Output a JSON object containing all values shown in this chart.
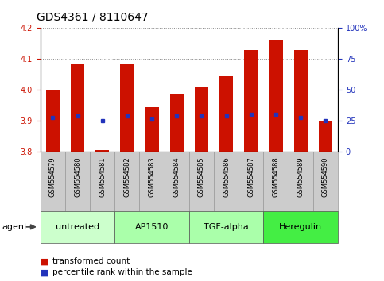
{
  "title": "GDS4361 / 8110647",
  "samples": [
    "GSM554579",
    "GSM554580",
    "GSM554581",
    "GSM554582",
    "GSM554583",
    "GSM554584",
    "GSM554585",
    "GSM554586",
    "GSM554587",
    "GSM554588",
    "GSM554589",
    "GSM554590"
  ],
  "bar_tops": [
    4.0,
    4.085,
    3.805,
    4.085,
    3.945,
    3.985,
    4.01,
    4.045,
    4.13,
    4.16,
    4.13,
    3.9
  ],
  "bar_bottom": 3.8,
  "blue_dots": [
    3.91,
    3.915,
    3.9,
    3.915,
    3.905,
    3.915,
    3.915,
    3.915,
    3.92,
    3.92,
    3.91,
    3.9
  ],
  "bar_color": "#cc1100",
  "dot_color": "#2233bb",
  "ylim_left": [
    3.8,
    4.2
  ],
  "yticks_left": [
    3.8,
    3.9,
    4.0,
    4.1,
    4.2
  ],
  "ylim_right": [
    0,
    100
  ],
  "yticks_right": [
    0,
    25,
    50,
    75,
    100
  ],
  "ytick_labels_right": [
    "0",
    "25",
    "50",
    "75",
    "100%"
  ],
  "groups": [
    {
      "label": "untreated",
      "start": 0,
      "end": 3,
      "color": "#ccffcc"
    },
    {
      "label": "AP1510",
      "start": 3,
      "end": 6,
      "color": "#aaffaa"
    },
    {
      "label": "TGF-alpha",
      "start": 6,
      "end": 9,
      "color": "#aaffaa"
    },
    {
      "label": "Heregulin",
      "start": 9,
      "end": 12,
      "color": "#44ee44"
    }
  ],
  "agent_label": "agent",
  "legend_bar_label": "transformed count",
  "legend_dot_label": "percentile rank within the sample",
  "grid_color": "#888888",
  "title_fontsize": 10,
  "tick_fontsize": 7,
  "sample_fontsize": 6,
  "group_fontsize": 8,
  "legend_fontsize": 7.5
}
